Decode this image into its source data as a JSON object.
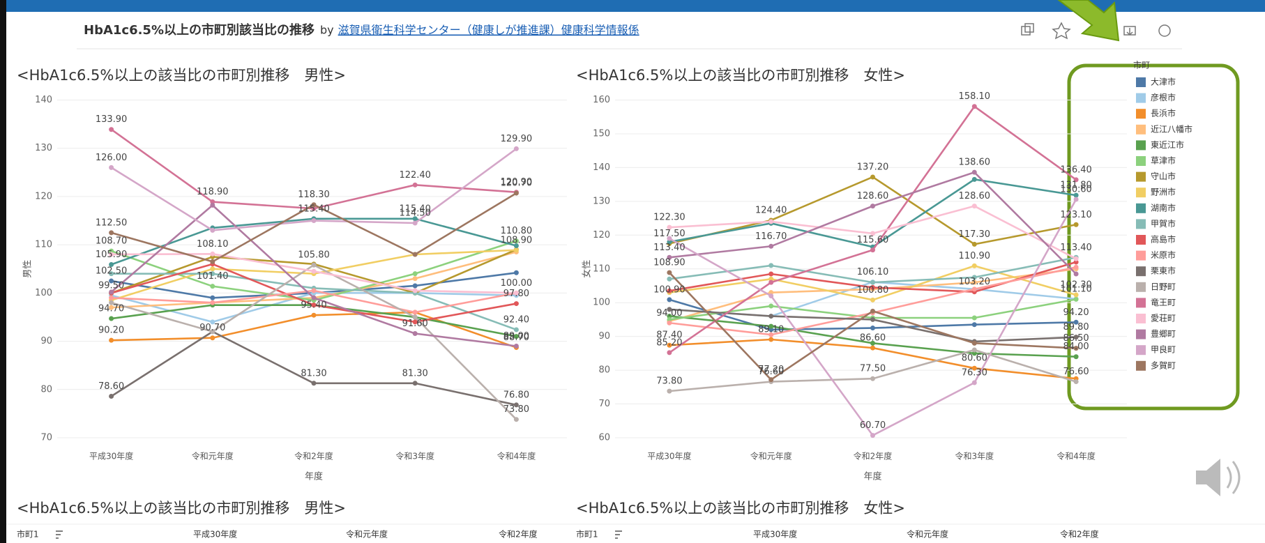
{
  "header": {
    "title": "HbA1c6.5%以上の市町別該当比の推移",
    "by": "by",
    "author": "滋賀県衛生科学センター（健康しが推進課）健康科学情報係"
  },
  "legend": {
    "title": "市町"
  },
  "chart_data": [
    {
      "type": "line",
      "title": "<HbA1c6.5%以上の該当比の市町別推移　男性>",
      "x_label": "年度",
      "y_label": "男性",
      "categories": [
        "平成30年度",
        "令和元年度",
        "令和2年度",
        "令和3年度",
        "令和4年度"
      ],
      "ylim": [
        70,
        140
      ],
      "yticks": [
        70,
        80,
        90,
        100,
        110,
        120,
        130,
        140
      ],
      "grid": true,
      "series": [
        {
          "name": "大津市",
          "color": "#4e79a7",
          "values": [
            102.5,
            99,
            100,
            101.5,
            104.2
          ],
          "value_labels": [
            "102.50",
            null,
            null,
            null,
            null
          ]
        },
        {
          "name": "彦根市",
          "color": "#a0cbe8",
          "values": [
            99.5,
            94,
            100,
            100,
            99.5
          ],
          "value_labels": [
            "99.50",
            null,
            null,
            null,
            null
          ]
        },
        {
          "name": "長浜市",
          "color": "#f28e2b",
          "values": [
            90.2,
            90.7,
            95.4,
            96,
            88.7
          ],
          "value_labels": [
            "90.20",
            "90.70",
            "95.40",
            null,
            "88.70"
          ]
        },
        {
          "name": "近江八幡市",
          "color": "#ffbe7d",
          "values": [
            97,
            98,
            99,
            103,
            108.5
          ],
          "value_labels": [
            null,
            null,
            null,
            null,
            null
          ]
        },
        {
          "name": "東近江市",
          "color": "#59a14f",
          "values": [
            94.7,
            97.5,
            97.5,
            95,
            91
          ],
          "value_labels": [
            "94.70",
            null,
            null,
            null,
            null
          ]
        },
        {
          "name": "草津市",
          "color": "#8cd17d",
          "values": [
            108.7,
            101.4,
            98.5,
            104,
            110.8
          ],
          "value_labels": [
            "108.70",
            "101.40",
            null,
            null,
            "110.80"
          ]
        },
        {
          "name": "守山市",
          "color": "#b6992d",
          "values": [
            100,
            107.5,
            106,
            100,
            109
          ],
          "value_labels": [
            null,
            null,
            null,
            null,
            null
          ]
        },
        {
          "name": "野洲市",
          "color": "#f1ce63",
          "values": [
            98.5,
            105,
            104,
            108,
            108.9
          ],
          "value_labels": [
            null,
            null,
            null,
            null,
            "108.90"
          ]
        },
        {
          "name": "湖南市",
          "color": "#499894",
          "values": [
            105.9,
            113.5,
            115.4,
            115.4,
            109.8
          ],
          "value_labels": [
            "105.90",
            null,
            "115.40",
            "115.40",
            null
          ]
        },
        {
          "name": "甲賀市",
          "color": "#86bcb6",
          "values": [
            104,
            104,
            101,
            100,
            92.4
          ],
          "value_labels": [
            null,
            null,
            null,
            null,
            "92.40"
          ]
        },
        {
          "name": "高島市",
          "color": "#e15759",
          "values": [
            100,
            106,
            97.5,
            94,
            97.8
          ],
          "value_labels": [
            null,
            null,
            null,
            null,
            "97.80"
          ]
        },
        {
          "name": "米原市",
          "color": "#ff9d9a",
          "values": [
            99,
            98,
            100.5,
            96,
            100
          ],
          "value_labels": [
            null,
            null,
            null,
            null,
            null
          ]
        },
        {
          "name": "栗東市",
          "color": "#79706e",
          "values": [
            78.6,
            92,
            81.3,
            81.3,
            76.8
          ],
          "value_labels": [
            "78.60",
            null,
            "81.30",
            "81.30",
            "76.80"
          ]
        },
        {
          "name": "日野町",
          "color": "#bab0ac",
          "values": [
            98,
            92,
            105.8,
            95,
            73.8
          ],
          "value_labels": [
            null,
            null,
            "105.80",
            null,
            "73.80"
          ]
        },
        {
          "name": "竜王町",
          "color": "#d37295",
          "values": [
            133.9,
            118.9,
            117.5,
            122.4,
            120.9
          ],
          "value_labels": [
            "133.90",
            "118.90",
            null,
            "122.40",
            "120.90"
          ]
        },
        {
          "name": "愛荘町",
          "color": "#fabfd2",
          "values": [
            108,
            108.1,
            104.5,
            100.5,
            100
          ],
          "value_labels": [
            null,
            "108.10",
            null,
            null,
            "100.00"
          ]
        },
        {
          "name": "豊郷町",
          "color": "#b07aa1",
          "values": [
            100.2,
            118.2,
            99,
            91.6,
            89
          ],
          "value_labels": [
            null,
            null,
            null,
            "91.60",
            "89.00"
          ]
        },
        {
          "name": "甲良町",
          "color": "#d4a6c8",
          "values": [
            126,
            113,
            115,
            114.5,
            129.9
          ],
          "value_labels": [
            "126.00",
            null,
            null,
            "114.50",
            "129.90"
          ]
        },
        {
          "name": "多賀町",
          "color": "#9d7660",
          "values": [
            112.5,
            106.5,
            118.3,
            108,
            120.7
          ],
          "value_labels": [
            "112.50",
            null,
            "118.30",
            null,
            "120.70"
          ]
        }
      ]
    },
    {
      "type": "line",
      "title": "<HbA1c6.5%以上の該当比の市町別推移　女性>",
      "x_label": "年度",
      "y_label": "女性",
      "categories": [
        "平成30年度",
        "令和元年度",
        "令和2年度",
        "令和3年度",
        "令和4年度"
      ],
      "ylim": [
        60,
        160
      ],
      "yticks": [
        60,
        70,
        80,
        90,
        100,
        110,
        120,
        130,
        140,
        150,
        160
      ],
      "grid": true,
      "series": [
        {
          "name": "大津市",
          "color": "#4e79a7",
          "values": [
            100.9,
            92,
            92.5,
            93.5,
            94.2
          ],
          "value_labels": [
            "100.90",
            null,
            null,
            null,
            "94.20"
          ]
        },
        {
          "name": "彦根市",
          "color": "#a0cbe8",
          "values": [
            98,
            96,
            106.1,
            104,
            101.1
          ],
          "value_labels": [
            null,
            null,
            "106.10",
            null,
            "101.10"
          ]
        },
        {
          "name": "長浜市",
          "color": "#f28e2b",
          "values": [
            87.4,
            89.1,
            86.6,
            80.6,
            77.5
          ],
          "value_labels": [
            "87.40",
            "89.10",
            "86.60",
            "80.60",
            null
          ]
        },
        {
          "name": "近江八幡市",
          "color": "#ffbe7d",
          "values": [
            94.5,
            103,
            104,
            106,
            110
          ],
          "value_labels": [
            null,
            null,
            null,
            null,
            null
          ]
        },
        {
          "name": "東近江市",
          "color": "#59a14f",
          "values": [
            96,
            93,
            88,
            85,
            84
          ],
          "value_labels": [
            null,
            null,
            null,
            null,
            "84.00"
          ]
        },
        {
          "name": "草津市",
          "color": "#8cd17d",
          "values": [
            95,
            99,
            95.5,
            95.5,
            101
          ],
          "value_labels": [
            null,
            null,
            null,
            null,
            null
          ]
        },
        {
          "name": "守山市",
          "color": "#b6992d",
          "values": [
            117.5,
            124.4,
            137.2,
            117.3,
            123.1
          ],
          "value_labels": [
            "117.50",
            "124.40",
            "137.20",
            "117.30",
            "123.10"
          ]
        },
        {
          "name": "野洲市",
          "color": "#f1ce63",
          "values": [
            103,
            107,
            100.8,
            110.9,
            102.3
          ],
          "value_labels": [
            null,
            null,
            "100.80",
            "110.90",
            "102.30"
          ]
        },
        {
          "name": "湖南市",
          "color": "#499894",
          "values": [
            118,
            123.5,
            116.5,
            136.5,
            131.8
          ],
          "value_labels": [
            null,
            null,
            null,
            null,
            "131.80"
          ]
        },
        {
          "name": "甲賀市",
          "color": "#86bcb6",
          "values": [
            107,
            111,
            106,
            107.5,
            113.4
          ],
          "value_labels": [
            null,
            null,
            null,
            null,
            "113.40"
          ]
        },
        {
          "name": "高島市",
          "color": "#e15759",
          "values": [
            103.5,
            108.5,
            104.5,
            103.2,
            112
          ],
          "value_labels": [
            null,
            null,
            null,
            "103.20",
            null
          ]
        },
        {
          "name": "米原市",
          "color": "#ff9d9a",
          "values": [
            94,
            90.5,
            97,
            104,
            110.5
          ],
          "value_labels": [
            "94.00",
            null,
            null,
            null,
            null
          ]
        },
        {
          "name": "栗東市",
          "color": "#79706e",
          "values": [
            98,
            96,
            95,
            88.5,
            89.8
          ],
          "value_labels": [
            null,
            null,
            null,
            null,
            "89.80"
          ]
        },
        {
          "name": "日野町",
          "color": "#bab0ac",
          "values": [
            73.8,
            76.6,
            77.5,
            86,
            76.6
          ],
          "value_labels": [
            "73.80",
            "76.60",
            "77.50",
            null,
            "76.60"
          ]
        },
        {
          "name": "竜王町",
          "color": "#d37295",
          "values": [
            85.2,
            106,
            115.6,
            158.1,
            136.4
          ],
          "value_labels": [
            "85.20",
            null,
            "115.60",
            "158.10",
            "136.40"
          ]
        },
        {
          "name": "愛荘町",
          "color": "#fabfd2",
          "values": [
            122.3,
            124,
            120.5,
            128.6,
            113
          ],
          "value_labels": [
            "122.30",
            null,
            null,
            "128.60",
            null
          ]
        },
        {
          "name": "豊郷町",
          "color": "#b07aa1",
          "values": [
            113.4,
            116.7,
            128.6,
            138.6,
            108.5
          ],
          "value_labels": [
            "113.40",
            "116.70",
            "128.60",
            "138.60",
            null
          ]
        },
        {
          "name": "甲良町",
          "color": "#d4a6c8",
          "values": [
            119,
            102,
            60.7,
            76.3,
            130.6
          ],
          "value_labels": [
            null,
            null,
            "60.70",
            "76.30",
            "130.60"
          ]
        },
        {
          "name": "多賀町",
          "color": "#9d7660",
          "values": [
            108.9,
            77.2,
            97.5,
            88,
            86.5
          ],
          "value_labels": [
            "108.90",
            "77.20",
            null,
            null,
            "86.50"
          ]
        }
      ]
    }
  ],
  "tables": [
    {
      "title": "<HbA1c6.5%以上の該当比の市町別推移　男性>",
      "columns": [
        "市町1",
        "平成30年度",
        "令和元年度",
        "令和2年度"
      ]
    },
    {
      "title": "<HbA1c6.5%以上の該当比の市町別推移　女性>",
      "columns": [
        "市町1",
        "平成30年度",
        "令和元年度",
        "令和2年度"
      ]
    }
  ]
}
